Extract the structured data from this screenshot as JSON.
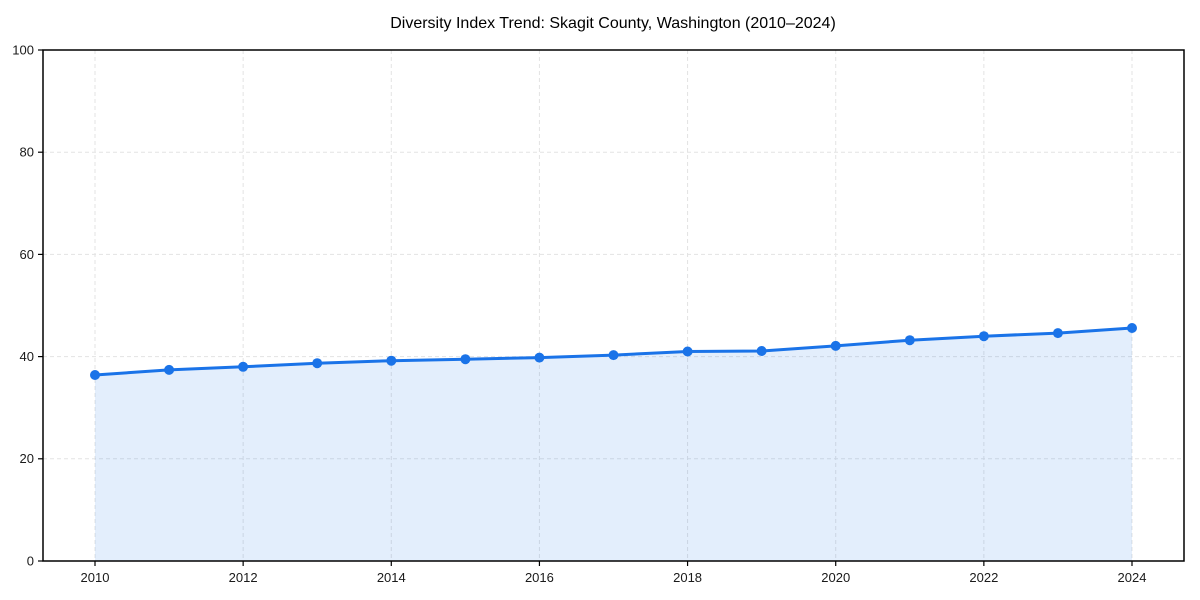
{
  "chart_data": {
    "type": "line",
    "title": "Diversity Index Trend: Skagit County, Washington (2010–2024)",
    "x": [
      2010,
      2011,
      2012,
      2013,
      2014,
      2015,
      2016,
      2017,
      2018,
      2019,
      2020,
      2021,
      2022,
      2023,
      2024
    ],
    "series": [
      {
        "name": "Diversity Index",
        "values": [
          36.4,
          37.4,
          38.0,
          38.7,
          39.2,
          39.5,
          39.8,
          40.3,
          41.0,
          41.1,
          42.1,
          43.2,
          44.0,
          44.6,
          45.6
        ]
      }
    ],
    "xlabel": "",
    "ylabel": "",
    "xlim_data": [
      2010,
      2024
    ],
    "ylim": [
      0,
      100
    ],
    "yticks": [
      "0",
      "20",
      "40",
      "60",
      "80",
      "100"
    ],
    "ytick_values": [
      0,
      20,
      40,
      60,
      80,
      100
    ],
    "xticks": [
      "2010",
      "2012",
      "2014",
      "2016",
      "2018",
      "2020",
      "2022",
      "2024"
    ],
    "xtick_values": [
      2010,
      2012,
      2014,
      2016,
      2018,
      2020,
      2022,
      2024
    ],
    "grid": "dashed-both",
    "legend": "none",
    "area_fill": true,
    "style": {
      "line_color": "#1a73e8",
      "marker_color": "#1a73e8",
      "fill_color": "#1a73e8",
      "fill_opacity": 0.12,
      "grid_color": "#e3e3e3",
      "spine_color": "#000000",
      "tick_color": "#000000",
      "tick_label_color": "#1a1a1a",
      "title_color": "#000000",
      "background": "#ffffff"
    }
  }
}
